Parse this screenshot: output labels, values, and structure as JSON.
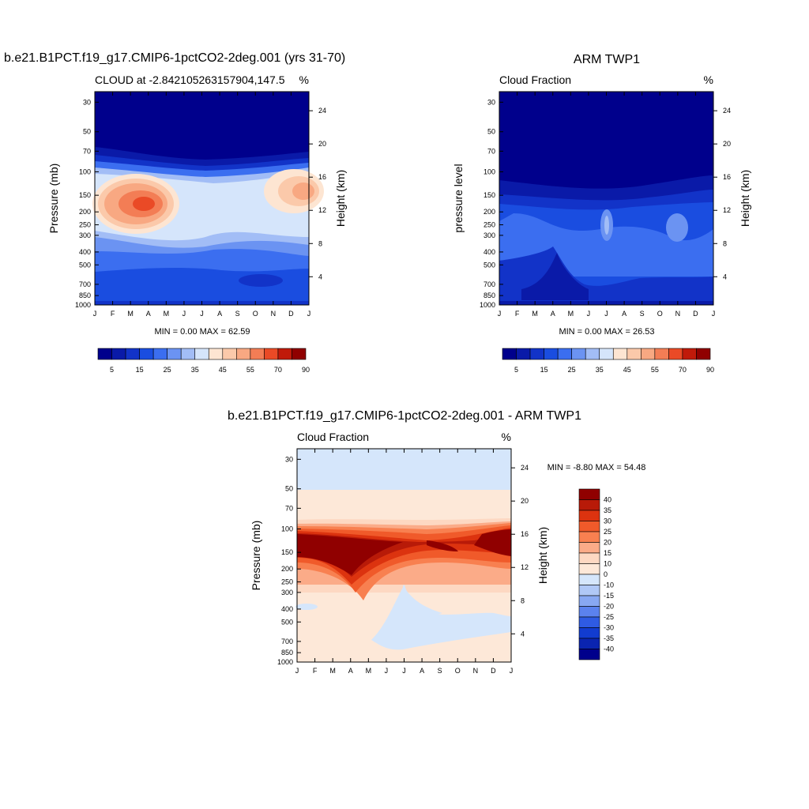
{
  "chart_data": [
    {
      "type": "heatmap",
      "title": "b.e21.B1PCT.f19_g17.CMIP6-1pctCO2-2deg.001 (yrs 31-70)",
      "subtitle_left": "CLOUD at -2.842105263157904,147.5",
      "subtitle_right": "%",
      "ylabel": "Pressure (mb)",
      "ylabel_right": "Height (km)",
      "stats": "MIN =   0.00 MAX =  62.59",
      "x_ticks": [
        "J",
        "F",
        "M",
        "A",
        "M",
        "J",
        "J",
        "A",
        "S",
        "O",
        "N",
        "D",
        "J"
      ],
      "pressure_ticks": [
        30,
        50,
        70,
        100,
        150,
        200,
        250,
        300,
        400,
        500,
        700,
        850,
        1000
      ],
      "height_ticks": [
        4,
        8,
        12,
        16,
        20,
        24
      ],
      "colorbar_labels": [
        "5",
        "15",
        "25",
        "35",
        "45",
        "55",
        "70",
        "90"
      ],
      "value_range": [
        0.0,
        62.59
      ]
    },
    {
      "type": "heatmap",
      "title": "ARM TWP1",
      "subtitle_left": "Cloud Fraction",
      "subtitle_right": "%",
      "ylabel": "pressure level",
      "ylabel_right": "Height (km)",
      "stats": "MIN =   0.00 MAX =  26.53",
      "x_ticks": [
        "J",
        "F",
        "M",
        "A",
        "M",
        "J",
        "J",
        "A",
        "S",
        "O",
        "N",
        "D",
        "J"
      ],
      "pressure_ticks": [
        30,
        50,
        70,
        100,
        150,
        200,
        250,
        300,
        400,
        500,
        700,
        850,
        1000
      ],
      "height_ticks": [
        4,
        8,
        12,
        16,
        20,
        24
      ],
      "colorbar_labels": [
        "5",
        "15",
        "25",
        "35",
        "45",
        "55",
        "70",
        "90"
      ],
      "value_range": [
        0.0,
        26.53
      ]
    },
    {
      "type": "heatmap",
      "title": "b.e21.B1PCT.f19_g17.CMIP6-1pctCO2-2deg.001 - ARM TWP1",
      "subtitle_left": "Cloud Fraction",
      "subtitle_right": "%",
      "ylabel": "Pressure (mb)",
      "ylabel_right": "Height (km)",
      "stats": "MIN =  -8.80 MAX =  54.48",
      "x_ticks": [
        "J",
        "F",
        "M",
        "A",
        "M",
        "J",
        "J",
        "A",
        "S",
        "O",
        "N",
        "D",
        "J"
      ],
      "pressure_ticks": [
        30,
        50,
        70,
        100,
        150,
        200,
        250,
        300,
        400,
        500,
        700,
        850,
        1000
      ],
      "height_ticks": [
        4,
        8,
        12,
        16,
        20,
        24
      ],
      "colorbar_labels": [
        "40",
        "35",
        "30",
        "25",
        "20",
        "15",
        "10",
        "0",
        "-10",
        "-15",
        "-20",
        "-25",
        "-30",
        "-35",
        "-40"
      ],
      "value_range": [
        -8.8,
        54.48
      ]
    }
  ],
  "palettes": {
    "cloud": [
      "#00008c",
      "#0a1aa8",
      "#1233c8",
      "#1a4de0",
      "#3b6ef0",
      "#6b93f2",
      "#a2bdf6",
      "#d5e5fb",
      "#fde5d2",
      "#fbc9aa",
      "#f8a882",
      "#f37d55",
      "#ea4a26",
      "#c01a0a",
      "#900000"
    ],
    "diff": [
      "#900000",
      "#b81a08",
      "#dc330f",
      "#f05a2a",
      "#f88050",
      "#fbab88",
      "#fdd8c2",
      "#fde8d8",
      "#d5e6fb",
      "#b0c8f6",
      "#88a8f2",
      "#5b82ee",
      "#2f5be3",
      "#123cd0",
      "#0a24b0",
      "#00008c"
    ]
  }
}
